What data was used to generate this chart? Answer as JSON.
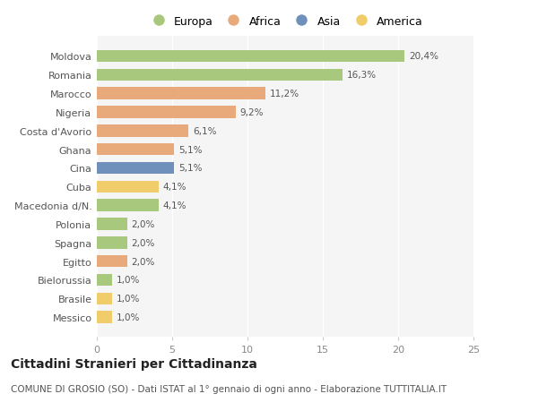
{
  "countries": [
    "Moldova",
    "Romania",
    "Marocco",
    "Nigeria",
    "Costa d'Avorio",
    "Ghana",
    "Cina",
    "Cuba",
    "Macedonia d/N.",
    "Polonia",
    "Spagna",
    "Egitto",
    "Bielorussia",
    "Brasile",
    "Messico"
  ],
  "values": [
    20.4,
    16.3,
    11.2,
    9.2,
    6.1,
    5.1,
    5.1,
    4.1,
    4.1,
    2.0,
    2.0,
    2.0,
    1.0,
    1.0,
    1.0
  ],
  "labels": [
    "20,4%",
    "16,3%",
    "11,2%",
    "9,2%",
    "6,1%",
    "5,1%",
    "5,1%",
    "4,1%",
    "4,1%",
    "2,0%",
    "2,0%",
    "2,0%",
    "1,0%",
    "1,0%",
    "1,0%"
  ],
  "continents": [
    "Europa",
    "Europa",
    "Africa",
    "Africa",
    "Africa",
    "Africa",
    "Asia",
    "America",
    "Europa",
    "Europa",
    "Europa",
    "Africa",
    "Europa",
    "America",
    "America"
  ],
  "colors": {
    "Europa": "#a8c87e",
    "Africa": "#e8aa7a",
    "Asia": "#7090bc",
    "America": "#f0cc6a"
  },
  "legend_order": [
    "Europa",
    "Africa",
    "Asia",
    "America"
  ],
  "title": "Cittadini Stranieri per Cittadinanza",
  "subtitle": "COMUNE DI GROSIO (SO) - Dati ISTAT al 1° gennaio di ogni anno - Elaborazione TUTTITALIA.IT",
  "xlim": [
    0,
    25
  ],
  "xticks": [
    0,
    5,
    10,
    15,
    20,
    25
  ],
  "plot_bg_color": "#f5f5f5",
  "fig_bg_color": "#ffffff",
  "grid_color": "#ffffff",
  "bar_height": 0.65,
  "title_fontsize": 10,
  "subtitle_fontsize": 7.5,
  "label_fontsize": 7.5,
  "tick_fontsize": 8,
  "legend_fontsize": 9
}
